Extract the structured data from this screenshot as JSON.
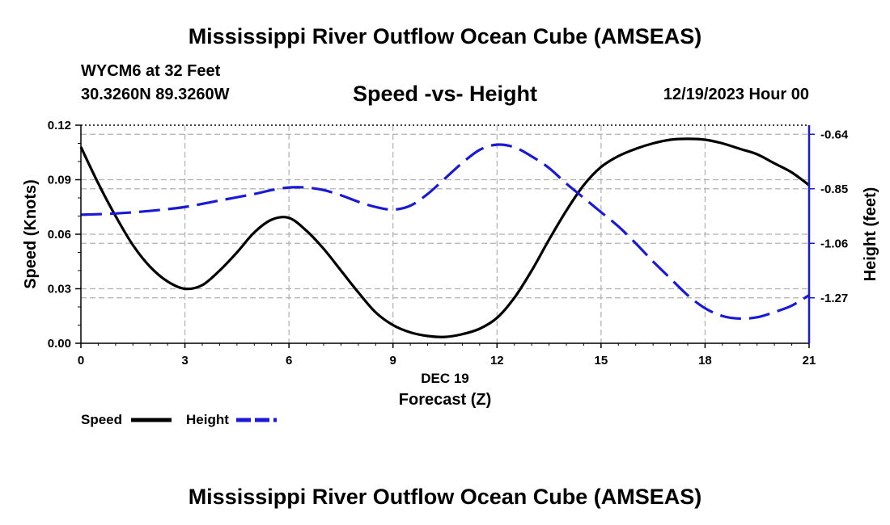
{
  "title": "Mississippi River Outflow Ocean Cube (AMSEAS)",
  "footer_title": "Mississippi River Outflow Ocean Cube (AMSEAS)",
  "station": "WYCM6 at 32 Feet",
  "coordinates": "30.3260N  89.3260W",
  "subtitle": "Speed -vs- Height",
  "datetime": "12/19/2023 Hour 00",
  "colors": {
    "speed": "#000000",
    "height": "#1a1ad6",
    "grid": "#b0b0b0"
  },
  "chart_data": {
    "type": "line",
    "title": "Speed -vs- Height",
    "xlabel": "Forecast (Z)",
    "xlabel_date": "DEC 19",
    "ylabel": "Speed (Knots)",
    "y2label": "Height (feet)",
    "xlim": [
      0,
      21
    ],
    "ylim": [
      0,
      0.12
    ],
    "y2lim": [
      -1.445,
      -0.605
    ],
    "xticks": [
      0,
      3,
      6,
      9,
      12,
      15,
      18,
      21
    ],
    "xtick_labels": [
      "0",
      "3",
      "6",
      "9",
      "12",
      "15",
      "18",
      "21"
    ],
    "yticks": [
      0,
      0.03,
      0.06,
      0.09,
      0.12
    ],
    "ytick_labels": [
      "0.00",
      "0.03",
      "0.06",
      "0.09",
      "0.12"
    ],
    "y2ticks": [
      -0.64,
      -0.85,
      -1.06,
      -1.27
    ],
    "y2tick_labels": [
      "-0.64",
      "-0.85",
      "-1.06",
      "-1.27"
    ],
    "grid": true,
    "legend_position": "bottom-left",
    "series": [
      {
        "name": "Speed",
        "axis": "left",
        "style": "solid",
        "x": [
          0,
          0.5,
          1,
          1.5,
          2,
          2.5,
          3,
          3.5,
          4,
          4.5,
          5,
          5.5,
          6,
          6.5,
          7,
          7.5,
          8,
          8.5,
          9,
          9.5,
          10,
          10.5,
          11,
          11.5,
          12,
          12.5,
          13,
          13.5,
          14,
          14.5,
          15,
          15.5,
          16,
          16.5,
          17,
          17.5,
          18,
          18.5,
          19,
          19.5,
          20,
          20.5,
          21
        ],
        "values": [
          0.108,
          0.088,
          0.07,
          0.054,
          0.042,
          0.034,
          0.03,
          0.032,
          0.04,
          0.05,
          0.061,
          0.068,
          0.069,
          0.062,
          0.052,
          0.04,
          0.028,
          0.017,
          0.01,
          0.006,
          0.004,
          0.0035,
          0.005,
          0.008,
          0.014,
          0.025,
          0.04,
          0.057,
          0.073,
          0.087,
          0.097,
          0.103,
          0.107,
          0.11,
          0.112,
          0.1125,
          0.112,
          0.11,
          0.107,
          0.104,
          0.099,
          0.094,
          0.087
        ]
      },
      {
        "name": "Height",
        "axis": "right",
        "style": "dashed",
        "x": [
          0,
          1,
          2,
          3,
          4,
          5,
          5.5,
          6,
          6.5,
          7,
          7.5,
          8,
          8.5,
          9,
          9.5,
          10,
          10.5,
          11,
          11.5,
          12,
          12.5,
          13,
          13.5,
          14,
          14.5,
          15,
          15.5,
          16,
          16.5,
          17,
          17.5,
          18,
          18.5,
          19,
          19.5,
          20,
          20.5,
          21
        ],
        "values": [
          -0.95,
          -0.945,
          -0.935,
          -0.92,
          -0.895,
          -0.87,
          -0.855,
          -0.845,
          -0.845,
          -0.855,
          -0.875,
          -0.9,
          -0.92,
          -0.93,
          -0.915,
          -0.87,
          -0.81,
          -0.75,
          -0.7,
          -0.68,
          -0.69,
          -0.725,
          -0.77,
          -0.83,
          -0.885,
          -0.94,
          -0.995,
          -1.06,
          -1.13,
          -1.195,
          -1.26,
          -1.31,
          -1.34,
          -1.35,
          -1.345,
          -1.325,
          -1.3,
          -1.26
        ]
      }
    ]
  }
}
